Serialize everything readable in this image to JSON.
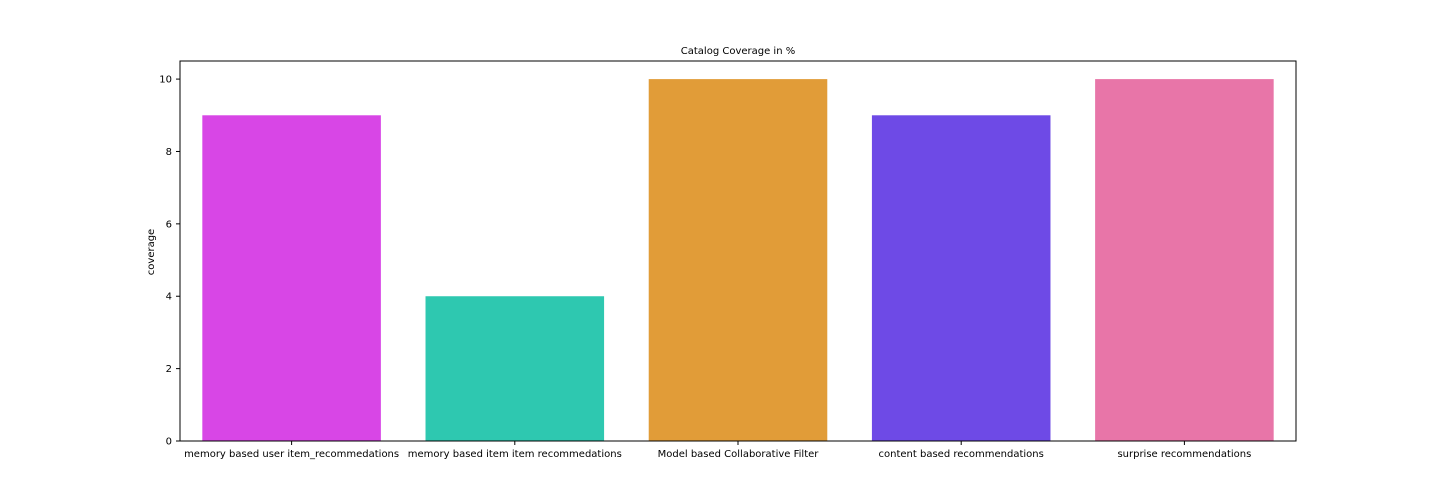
{
  "chart_data": {
    "type": "bar",
    "title": "Catalog Coverage in %",
    "xlabel": "",
    "ylabel": "coverage",
    "categories": [
      "memory based user item_recommedations",
      "memory based item item recommedations",
      "Model based Collaborative Filter",
      "content based recommendations",
      "surprise recommendations"
    ],
    "values": [
      9,
      4,
      10,
      9,
      10
    ],
    "colors": [
      "#d846e6",
      "#2ec8b0",
      "#e19c38",
      "#6e4ae6",
      "#e875a8"
    ],
    "ylim": [
      0,
      10.5
    ],
    "yticks": [
      0,
      2,
      4,
      6,
      8,
      10
    ],
    "grid": false,
    "legend": "none"
  }
}
